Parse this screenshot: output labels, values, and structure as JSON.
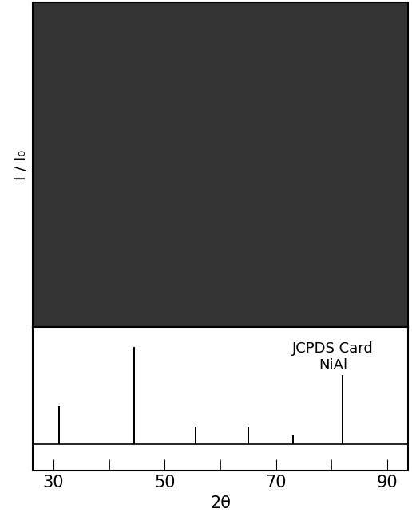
{
  "chart_data": [
    {
      "type": "image",
      "y_label": "I / I₀",
      "tick_labels": false
    },
    {
      "type": "bar",
      "annotation": [
        "JCPDS Card",
        "NiAl"
      ],
      "x": [
        31.0,
        44.5,
        55.5,
        65.0,
        73.0,
        82.0
      ],
      "values": [
        39,
        100,
        18,
        18,
        9,
        71
      ],
      "color": "#000000",
      "xlim": [
        26.3,
        93.7
      ],
      "xticks": [
        30,
        50,
        70,
        90
      ],
      "ylim": [
        -27,
        120
      ],
      "x_label": "2θ",
      "tick_labels": "x"
    }
  ]
}
